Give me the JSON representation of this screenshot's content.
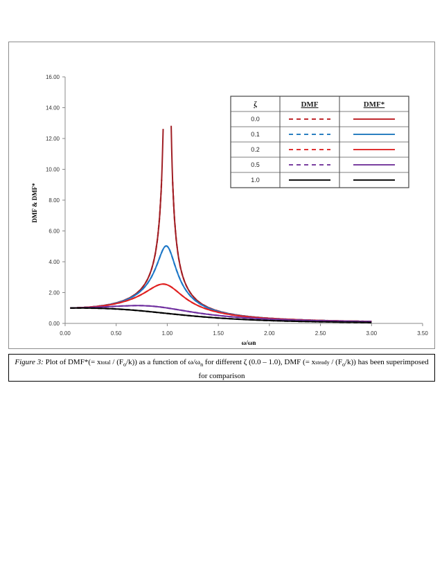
{
  "chart_data": {
    "type": "line",
    "xlabel": "ω/ωn",
    "ylabel": "DMF  & DMF*",
    "xlim": [
      0,
      3.5
    ],
    "ylim": [
      0,
      16
    ],
    "x_ticks": [
      "0.00",
      "0.50",
      "1.00",
      "1.50",
      "2.00",
      "2.50",
      "3.00",
      "3.50"
    ],
    "y_ticks": [
      "0.00",
      "2.00",
      "4.00",
      "6.00",
      "8.00",
      "10.00",
      "12.00",
      "14.00",
      "16.00"
    ],
    "legend": {
      "headers": [
        "ζ",
        "DMF",
        "DMF*"
      ],
      "rows": [
        {
          "zeta": "0.0",
          "color": "#c0282d"
        },
        {
          "zeta": "0.1",
          "color": "#2a7fc1"
        },
        {
          "zeta": "0.2",
          "color": "#e03030"
        },
        {
          "zeta": "0.5",
          "color": "#7a3fa0"
        },
        {
          "zeta": "1.0",
          "color": "#111111"
        }
      ]
    },
    "series": [
      {
        "name": "DMF ζ=0.0",
        "color": "#c0282d",
        "style": "dashed",
        "zeta": 0.0,
        "kind": "dmf",
        "clip": 10
      },
      {
        "name": "DMF* ζ=0.0",
        "color": "#a01e24",
        "style": "solid",
        "zeta": 0.0,
        "kind": "dmfstar",
        "clip": 14.1
      },
      {
        "name": "DMF ζ=0.1",
        "color": "#2a7fc1",
        "style": "dashed",
        "zeta": 0.1,
        "kind": "dmf"
      },
      {
        "name": "DMF* ζ=0.1",
        "color": "#1f78c8",
        "style": "solid",
        "zeta": 0.1,
        "kind": "dmfstar"
      },
      {
        "name": "DMF ζ=0.2",
        "color": "#e03030",
        "style": "dashed",
        "zeta": 0.2,
        "kind": "dmf"
      },
      {
        "name": "DMF* ζ=0.2",
        "color": "#e02020",
        "style": "solid",
        "zeta": 0.2,
        "kind": "dmfstar"
      },
      {
        "name": "DMF ζ=0.5",
        "color": "#7a3fa0",
        "style": "dashed",
        "zeta": 0.5,
        "kind": "dmf"
      },
      {
        "name": "DMF* ζ=0.5",
        "color": "#7030a0",
        "style": "solid",
        "zeta": 0.5,
        "kind": "dmfstar"
      },
      {
        "name": "DMF ζ=1.0",
        "color": "#111111",
        "style": "dashed",
        "zeta": 1.0,
        "kind": "dmf"
      },
      {
        "name": "DMF* ζ=1.0",
        "color": "#000000",
        "style": "solid",
        "zeta": 1.0,
        "kind": "dmfstar"
      }
    ],
    "x_range": [
      0.05,
      3.0
    ]
  },
  "caption": {
    "label": "Figure 3:",
    "text_1": " Plot of DMF*(= x",
    "sub_1": "total",
    "text_2": " / (F",
    "sub_2": "o",
    "text_3": "/k)) as a function  of ω/ω",
    "sub_3": "n",
    "text_4": " for different  ζ (0.0 – 1.0), DMF (= x",
    "sub_4": "steady",
    "text_5": " / (F",
    "sub_5": "o",
    "text_6": "/k)) has been superimposed  for comparison"
  }
}
